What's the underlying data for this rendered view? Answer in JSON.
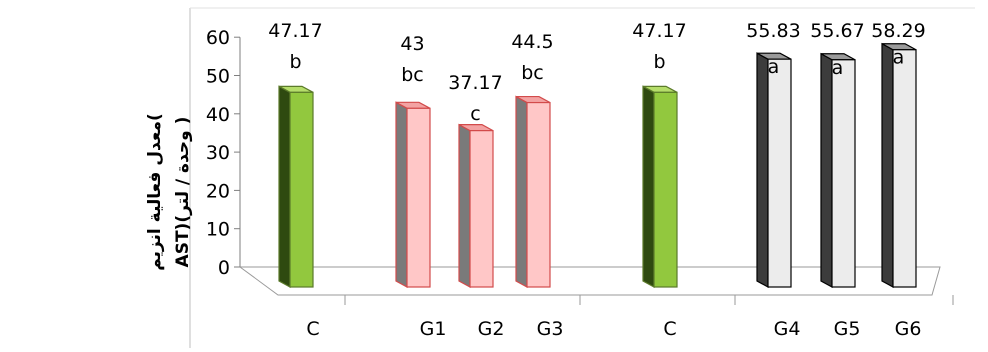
{
  "chart_data": {
    "type": "bar",
    "title": "",
    "xlabel": "",
    "ylabel_line1": "معدل فعالية انزيم(",
    "ylabel_line2": "AST)(وحدة / لتر )",
    "ylim": [
      0,
      60
    ],
    "yticks": [
      "0",
      "10",
      "20",
      "30",
      "40",
      "50",
      "60"
    ],
    "categories": [
      "C",
      "G1",
      "G2",
      "G3",
      "C",
      "G4",
      "G5",
      "G6"
    ],
    "values": [
      47.17,
      43,
      37.17,
      44.5,
      47.17,
      55.83,
      55.67,
      58.29
    ],
    "value_labels": [
      "47.17",
      "43",
      "37.17",
      "44.5",
      "47.17",
      "55.83",
      "55.67",
      "58.29"
    ],
    "letters": [
      "b",
      "bc",
      "c",
      "bc",
      "b",
      "a",
      "a",
      "a"
    ],
    "bar_colors": [
      "green",
      "pink",
      "pink",
      "pink",
      "green",
      "gray",
      "gray",
      "gray"
    ],
    "colors": {
      "green_front": "#92c83e",
      "green_side": "#2f4a10",
      "green_top": "#b5dd6a",
      "pink_front": "#ffc7c7",
      "pink_side": "#7a7a7a",
      "pink_top": "#f3a3a3",
      "pink_stroke": "#d24b4b",
      "gray_front": "#ececec",
      "gray_side": "#3c3c3c",
      "gray_top": "#9a9a9a",
      "gray_stroke": "#000000"
    }
  }
}
